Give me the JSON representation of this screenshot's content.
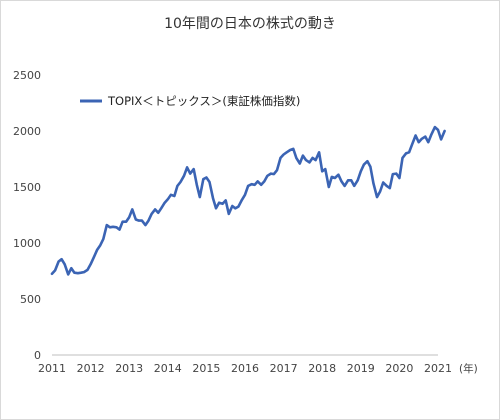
{
  "chart_data": {
    "type": "line",
    "title": "10年間の日本の株式の動き",
    "xlabel": "",
    "x_unit": "(年)",
    "ylabel": "",
    "ylim": [
      0,
      2500
    ],
    "yticks": [
      0,
      500,
      1000,
      1500,
      2000,
      2500
    ],
    "xlim": [
      2011,
      2021
    ],
    "xticks": [
      2011,
      2012,
      2013,
      2014,
      2015,
      2016,
      2017,
      2018,
      2019,
      2020,
      2021
    ],
    "grid": false,
    "legend_position": "top-left",
    "series_color": "#3b64b4",
    "series": [
      {
        "name": "TOPIX＜トピックス＞(東証株価指数)",
        "points": [
          [
            2011.0,
            725
          ],
          [
            2011.08,
            755
          ],
          [
            2011.17,
            835
          ],
          [
            2011.25,
            855
          ],
          [
            2011.33,
            810
          ],
          [
            2011.42,
            720
          ],
          [
            2011.5,
            775
          ],
          [
            2011.58,
            735
          ],
          [
            2011.67,
            730
          ],
          [
            2011.75,
            735
          ],
          [
            2011.83,
            740
          ],
          [
            2011.92,
            760
          ],
          [
            2012.0,
            810
          ],
          [
            2012.08,
            870
          ],
          [
            2012.17,
            940
          ],
          [
            2012.25,
            980
          ],
          [
            2012.33,
            1035
          ],
          [
            2012.42,
            1160
          ],
          [
            2012.5,
            1140
          ],
          [
            2012.58,
            1145
          ],
          [
            2012.67,
            1140
          ],
          [
            2012.75,
            1120
          ],
          [
            2012.83,
            1190
          ],
          [
            2012.92,
            1190
          ],
          [
            2013.0,
            1230
          ],
          [
            2013.08,
            1300
          ],
          [
            2013.17,
            1210
          ],
          [
            2013.25,
            1200
          ],
          [
            2013.33,
            1200
          ],
          [
            2013.42,
            1160
          ],
          [
            2013.5,
            1200
          ],
          [
            2013.58,
            1260
          ],
          [
            2013.67,
            1300
          ],
          [
            2013.75,
            1270
          ],
          [
            2013.83,
            1310
          ],
          [
            2013.92,
            1360
          ],
          [
            2014.0,
            1390
          ],
          [
            2014.08,
            1430
          ],
          [
            2014.17,
            1420
          ],
          [
            2014.25,
            1510
          ],
          [
            2014.33,
            1545
          ],
          [
            2014.42,
            1600
          ],
          [
            2014.5,
            1675
          ],
          [
            2014.58,
            1620
          ],
          [
            2014.67,
            1660
          ],
          [
            2014.75,
            1520
          ],
          [
            2014.83,
            1410
          ],
          [
            2014.92,
            1570
          ],
          [
            2015.0,
            1585
          ],
          [
            2015.08,
            1545
          ],
          [
            2015.17,
            1400
          ],
          [
            2015.25,
            1310
          ],
          [
            2015.33,
            1360
          ],
          [
            2015.42,
            1350
          ],
          [
            2015.5,
            1380
          ],
          [
            2015.58,
            1260
          ],
          [
            2015.67,
            1330
          ],
          [
            2015.75,
            1310
          ],
          [
            2015.83,
            1325
          ],
          [
            2015.92,
            1385
          ],
          [
            2016.0,
            1430
          ],
          [
            2016.08,
            1510
          ],
          [
            2016.17,
            1525
          ],
          [
            2016.25,
            1520
          ],
          [
            2016.33,
            1550
          ],
          [
            2016.42,
            1520
          ],
          [
            2016.5,
            1550
          ],
          [
            2016.58,
            1600
          ],
          [
            2016.67,
            1620
          ],
          [
            2016.75,
            1615
          ],
          [
            2016.83,
            1650
          ],
          [
            2016.92,
            1760
          ],
          [
            2017.0,
            1790
          ],
          [
            2017.08,
            1810
          ],
          [
            2017.17,
            1830
          ],
          [
            2017.25,
            1840
          ],
          [
            2017.33,
            1760
          ],
          [
            2017.42,
            1710
          ],
          [
            2017.5,
            1780
          ],
          [
            2017.58,
            1740
          ],
          [
            2017.67,
            1720
          ],
          [
            2017.75,
            1760
          ],
          [
            2017.83,
            1740
          ],
          [
            2017.92,
            1810
          ],
          [
            2018.0,
            1640
          ],
          [
            2018.08,
            1660
          ],
          [
            2018.17,
            1500
          ],
          [
            2018.25,
            1590
          ],
          [
            2018.33,
            1580
          ],
          [
            2018.42,
            1610
          ],
          [
            2018.5,
            1550
          ],
          [
            2018.58,
            1510
          ],
          [
            2018.67,
            1560
          ],
          [
            2018.75,
            1560
          ],
          [
            2018.83,
            1510
          ],
          [
            2018.92,
            1560
          ],
          [
            2019.0,
            1640
          ],
          [
            2019.08,
            1700
          ],
          [
            2019.17,
            1730
          ],
          [
            2019.25,
            1680
          ],
          [
            2019.33,
            1530
          ],
          [
            2019.42,
            1410
          ],
          [
            2019.5,
            1460
          ],
          [
            2019.58,
            1540
          ],
          [
            2019.67,
            1510
          ],
          [
            2019.75,
            1490
          ],
          [
            2019.83,
            1615
          ],
          [
            2019.92,
            1620
          ],
          [
            2020.0,
            1580
          ],
          [
            2020.08,
            1760
          ],
          [
            2020.17,
            1800
          ],
          [
            2020.25,
            1810
          ],
          [
            2020.33,
            1880
          ],
          [
            2020.42,
            1960
          ],
          [
            2020.5,
            1900
          ],
          [
            2020.58,
            1930
          ],
          [
            2020.67,
            1950
          ],
          [
            2020.75,
            1900
          ],
          [
            2020.83,
            1970
          ],
          [
            2020.92,
            2035
          ],
          [
            2021.0,
            2010
          ],
          [
            2021.08,
            1925
          ],
          [
            2021.17,
            2000
          ]
        ]
      }
    ]
  }
}
